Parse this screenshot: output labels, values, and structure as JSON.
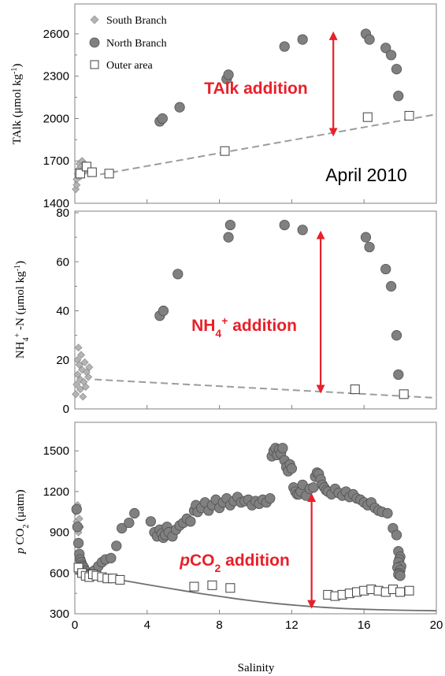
{
  "chart_data": [
    {
      "type": "scatter",
      "ylabel": "TAlk (μmol kg⁻¹)",
      "ylabel_parts": [
        "TAlk (",
        "μ",
        "mol kg",
        "-1",
        ")"
      ],
      "xlim": [
        0,
        20
      ],
      "ylim": [
        1400,
        2700
      ],
      "yticks": [
        1400,
        1700,
        2000,
        2300,
        2600
      ],
      "legend": [
        "South Branch",
        "North Branch",
        "Outer area"
      ],
      "legend_position": "top-left",
      "date_label": "April 2010",
      "annotation": "TAlk addition",
      "annotation_parts": [
        "TAlk addition"
      ],
      "arrow": {
        "x": 14.3,
        "y_from": 1885,
        "y_to": 2605
      },
      "series": [
        {
          "name": "South Branch",
          "marker": "diamond",
          "color": "#b4b4b4",
          "x": [
            0.05,
            0.1,
            0.1,
            0.15,
            0.2,
            0.25,
            0.3,
            0.35,
            0.4,
            0.4,
            0.5,
            0.55,
            0.6
          ],
          "y": [
            1500,
            1530,
            1570,
            1610,
            1640,
            1680,
            1590,
            1660,
            1620,
            1700,
            1650,
            1680,
            1630
          ]
        },
        {
          "name": "North Branch",
          "marker": "circle",
          "color": "#808080",
          "x": [
            4.7,
            4.85,
            5.8,
            8.4,
            8.5,
            11.6,
            12.6,
            16.1,
            16.3,
            17.2,
            17.5,
            17.8,
            17.9
          ],
          "y": [
            1980,
            2000,
            2080,
            2280,
            2310,
            2510,
            2560,
            2600,
            2560,
            2500,
            2450,
            2350,
            2160
          ]
        },
        {
          "name": "Outer area",
          "marker": "square",
          "color": "#ffffff",
          "x": [
            0.3,
            0.65,
            0.95,
            1.9,
            8.3,
            16.2,
            18.5
          ],
          "y": [
            1610,
            1660,
            1620,
            1610,
            1770,
            2010,
            2020
          ]
        },
        {
          "name": "",
          "type": "line",
          "style": "dashed",
          "color": "#9c9c9c",
          "x": [
            0.8,
            20.0
          ],
          "y": [
            1590,
            2030
          ]
        }
      ]
    },
    {
      "type": "scatter",
      "ylabel": "NH₄⁺-N (μmol kg⁻¹)",
      "ylabel_parts": [
        "NH",
        "4",
        "+",
        " -N (",
        "μ",
        "mol kg",
        "-1",
        ")"
      ],
      "xlim": [
        0,
        20
      ],
      "ylim": [
        0,
        80
      ],
      "yticks": [
        0,
        20,
        40,
        60,
        80
      ],
      "annotation": "NH₄⁺ addition",
      "annotation_parts": [
        "NH",
        "4",
        "+",
        " addition"
      ],
      "arrow": {
        "x": 13.6,
        "y_from": 7,
        "y_to": 72
      },
      "series": [
        {
          "name": "South Branch",
          "marker": "diamond",
          "color": "#b4b4b4",
          "x": [
            0.05,
            0.1,
            0.15,
            0.15,
            0.2,
            0.25,
            0.3,
            0.3,
            0.35,
            0.4,
            0.45,
            0.5,
            0.55,
            0.6,
            0.65,
            0.75,
            0.8
          ],
          "y": [
            6,
            10,
            14,
            20,
            25,
            18,
            8,
            12,
            22,
            16,
            5,
            11,
            19,
            9,
            15,
            13,
            17
          ]
        },
        {
          "name": "North Branch",
          "marker": "circle",
          "color": "#808080",
          "x": [
            4.7,
            4.9,
            5.7,
            8.5,
            8.6,
            11.6,
            12.6,
            16.1,
            16.3,
            17.2,
            17.5,
            17.8,
            17.9
          ],
          "y": [
            38,
            40,
            55,
            70,
            75,
            75,
            73,
            70,
            66,
            57,
            50,
            30,
            14
          ]
        },
        {
          "name": "Outer area",
          "marker": "square",
          "color": "#ffffff",
          "x": [
            15.5,
            18.2
          ],
          "y": [
            8,
            6
          ]
        },
        {
          "name": "",
          "type": "line",
          "style": "dashed",
          "color": "#9c9c9c",
          "x": [
            1.1,
            20.0
          ],
          "y": [
            12,
            4.5
          ]
        }
      ]
    },
    {
      "type": "scatter",
      "ylabel": "pCO₂ (μatm)",
      "ylabel_parts": [
        "p",
        " CO",
        "2",
        " (",
        "μ",
        "atm)"
      ],
      "xlabel": "Salinity",
      "xlim": [
        0,
        20
      ],
      "xticks": [
        0,
        4,
        8,
        12,
        16,
        20
      ],
      "ylim": [
        300,
        1600
      ],
      "yticks": [
        300,
        600,
        900,
        1200,
        1500
      ],
      "annotation": "pCO₂ addition",
      "annotation_parts": [
        "p",
        "CO",
        "2",
        " addition"
      ],
      "arrow": {
        "x": 13.1,
        "y_from": 350,
        "y_to": 1175
      },
      "series": [
        {
          "name": "South Branch",
          "marker": "diamond",
          "color": "#b4b4b4",
          "x": [
            0.05,
            0.1,
            0.15,
            0.2,
            0.25,
            0.3
          ],
          "y": [
            1050,
            980,
            1100,
            900,
            1000,
            940
          ]
        },
        {
          "name": "North Branch",
          "marker": "circle",
          "color": "#808080",
          "x": [
            0.1,
            0.15,
            0.2,
            0.25,
            0.3,
            0.35,
            0.4,
            0.45,
            0.5,
            0.55,
            0.6,
            0.65,
            0.7,
            0.8,
            0.9,
            1.0,
            1.1,
            1.3,
            1.5,
            1.7,
            2.0,
            2.3,
            2.6,
            3.0,
            3.3,
            4.2,
            4.4,
            4.55,
            4.7,
            4.8,
            4.9,
            5.0,
            5.1,
            5.2,
            5.4,
            5.6,
            5.8,
            6.0,
            6.2,
            6.4,
            6.6,
            6.7,
            6.8,
            7.0,
            7.2,
            7.4,
            7.6,
            7.8,
            8.0,
            8.2,
            8.4,
            8.6,
            8.8,
            9.0,
            9.2,
            9.4,
            9.6,
            9.8,
            10.0,
            10.2,
            10.4,
            10.6,
            10.8,
            10.9,
            11.0,
            11.1,
            11.2,
            11.3,
            11.4,
            11.5,
            11.6,
            11.7,
            11.8,
            11.9,
            12.0,
            12.1,
            12.2,
            12.3,
            12.4,
            12.5,
            12.6,
            12.8,
            13.0,
            13.2,
            13.3,
            13.4,
            13.5,
            13.6,
            13.7,
            13.8,
            13.9,
            14.0,
            14.2,
            14.4,
            14.6,
            14.8,
            15.0,
            15.2,
            15.4,
            15.6,
            15.8,
            16.0,
            16.2,
            16.4,
            16.6,
            16.8,
            17.0,
            17.3,
            17.6,
            17.8,
            17.9,
            18.0,
            17.95,
            17.9,
            18.05,
            17.85,
            18.0,
            17.95,
            17.9,
            18.0
          ],
          "y": [
            1070,
            940,
            820,
            740,
            700,
            680,
            660,
            650,
            640,
            620,
            600,
            610,
            590,
            580,
            600,
            610,
            620,
            650,
            680,
            700,
            710,
            800,
            930,
            970,
            1040,
            980,
            900,
            870,
            920,
            890,
            860,
            880,
            940,
            900,
            870,
            920,
            950,
            970,
            1000,
            980,
            1060,
            1100,
            1050,
            1080,
            1120,
            1060,
            1100,
            1140,
            1080,
            1120,
            1150,
            1100,
            1130,
            1160,
            1120,
            1130,
            1140,
            1100,
            1130,
            1110,
            1140,
            1120,
            1150,
            1460,
            1500,
            1520,
            1470,
            1510,
            1480,
            1520,
            1430,
            1380,
            1350,
            1400,
            1370,
            1230,
            1200,
            1180,
            1180,
            1200,
            1250,
            1170,
            1220,
            1230,
            1310,
            1340,
            1330,
            1290,
            1250,
            1230,
            1210,
            1200,
            1180,
            1220,
            1190,
            1170,
            1200,
            1160,
            1180,
            1150,
            1140,
            1120,
            1100,
            1120,
            1080,
            1060,
            1050,
            1040,
            930,
            880,
            760,
            720,
            700,
            680,
            650,
            640,
            620,
            600,
            590,
            580
          ]
        },
        {
          "name": "Outer area",
          "marker": "square",
          "color": "#ffffff",
          "x": [
            0.2,
            0.4,
            0.6,
            0.8,
            1.0,
            1.2,
            1.5,
            1.8,
            2.1,
            2.5,
            6.6,
            7.6,
            8.6,
            14.0,
            14.4,
            14.8,
            15.2,
            15.6,
            16.0,
            16.4,
            16.8,
            17.2,
            17.6,
            18.0,
            18.5
          ],
          "y": [
            640,
            600,
            580,
            570,
            590,
            580,
            570,
            560,
            560,
            550,
            500,
            510,
            490,
            440,
            430,
            440,
            450,
            460,
            470,
            480,
            470,
            460,
            480,
            460,
            470
          ]
        },
        {
          "name": "",
          "type": "line",
          "style": "solid",
          "color": "#707070",
          "x": [
            0,
            1,
            2,
            3,
            4,
            5,
            6,
            7,
            8,
            9,
            10,
            11,
            12,
            13,
            14,
            15,
            16,
            17,
            18,
            19,
            20
          ],
          "y": [
            595,
            578,
            560,
            538,
            515,
            492,
            470,
            448,
            428,
            409,
            392,
            377,
            365,
            354,
            345,
            338,
            333,
            329,
            326,
            324,
            322
          ]
        }
      ]
    }
  ]
}
